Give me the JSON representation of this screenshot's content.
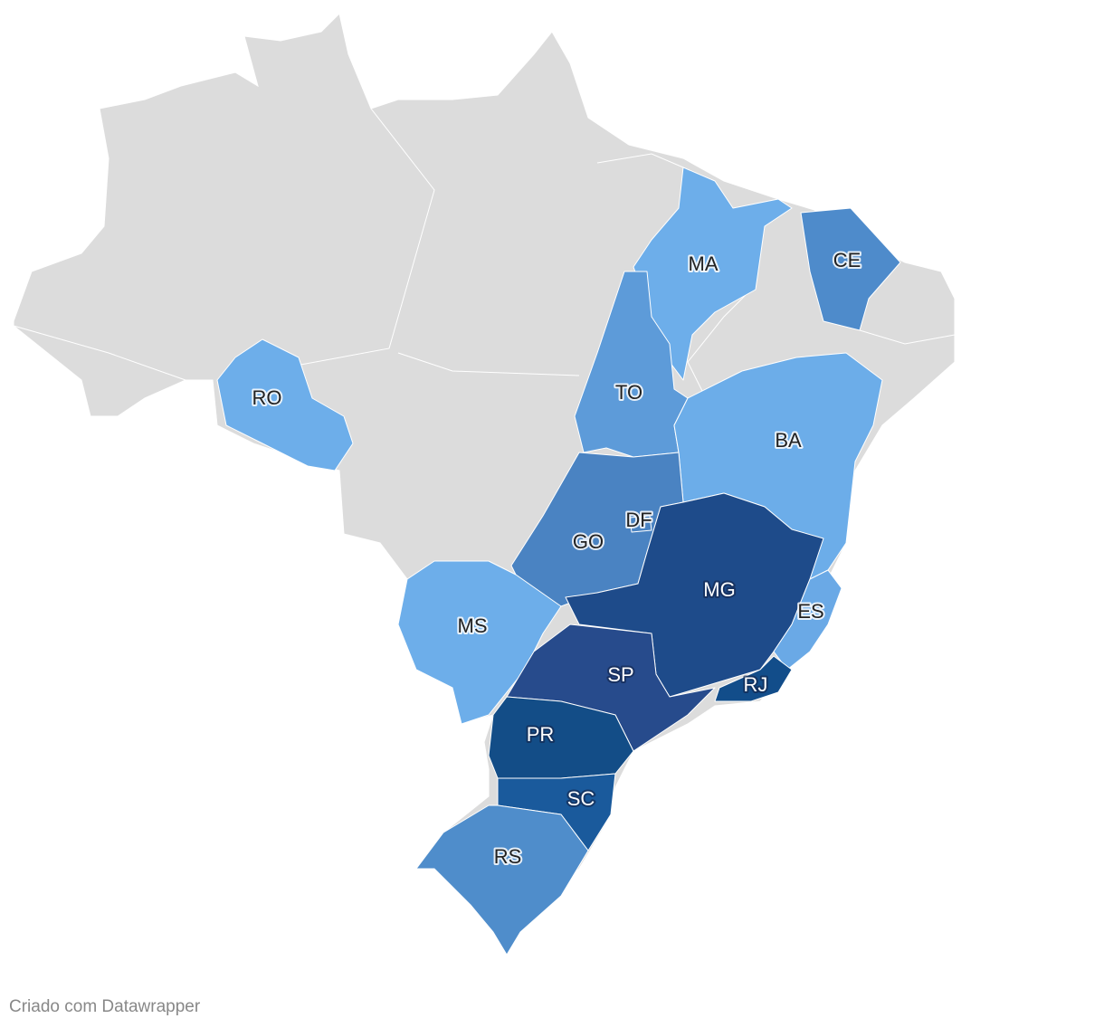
{
  "regions": [
    {
      "label": "RO",
      "color": "#6daeea"
    },
    {
      "label": "MA",
      "color": "#6daeea"
    },
    {
      "label": "CE",
      "color": "#4e8bcb"
    },
    {
      "label": "TO",
      "color": "#5d9bd9"
    },
    {
      "label": "BA",
      "color": "#6cade9"
    },
    {
      "label": "GO",
      "color": "#4a83c2"
    },
    {
      "label": "DF",
      "color": "#4a83c2"
    },
    {
      "label": "MG",
      "color": "#1e4b8a"
    },
    {
      "label": "ES",
      "color": "#6aa9e6"
    },
    {
      "label": "MS",
      "color": "#6daeea"
    },
    {
      "label": "SP",
      "color": "#274b8c"
    },
    {
      "label": "RJ",
      "color": "#124d8a"
    },
    {
      "label": "PR",
      "color": "#134d87"
    },
    {
      "label": "SC",
      "color": "#1a5a9c"
    },
    {
      "label": "RS",
      "color": "#4f8dcb"
    }
  ],
  "footer": "Criado com Datawrapper"
}
